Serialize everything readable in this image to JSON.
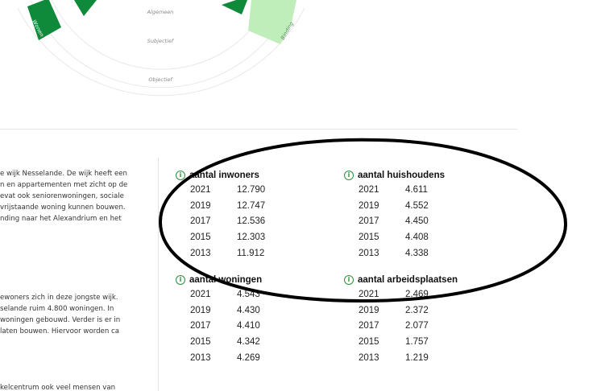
{
  "chart": {
    "ring_labels": [
      "Algemeen",
      "Subjectief",
      "Objectief"
    ],
    "segment_labels": [
      "Wonen",
      "Binding"
    ],
    "colors": {
      "dark_green": "#0e8a3a",
      "light_green": "#bfeebb",
      "ring": "#e8e8e8"
    }
  },
  "text": {
    "paragraph_1": [
      "e wijk Nesselande. De wijk heeft een",
      "n en appartementen met zicht op de",
      "evat ook seniorenwoningen, sociale",
      " vrijstaande woning kunnen bouwen.",
      "nding naar het Alexandrium en het"
    ],
    "paragraph_2": [
      "ewoners zich in deze jongste wijk.",
      "selande ruim 4.800 woningen. In",
      "woningen gebouwd. Verder is er in",
      "laten bouwen. Hiervoor worden ca"
    ],
    "paragraph_3": [
      "kelcentrum ook veel mensen van"
    ]
  },
  "stats": {
    "info_icon": "info-icon",
    "inwoners": {
      "title": "aantal inwoners",
      "rows": [
        {
          "year": "2021",
          "value": "12.790"
        },
        {
          "year": "2019",
          "value": "12.747"
        },
        {
          "year": "2017",
          "value": "12.536"
        },
        {
          "year": "2015",
          "value": "12.303"
        },
        {
          "year": "2013",
          "value": "11.912"
        }
      ]
    },
    "huishoudens": {
      "title": "aantal huishoudens",
      "rows": [
        {
          "year": "2021",
          "value": "4.611"
        },
        {
          "year": "2019",
          "value": "4.552"
        },
        {
          "year": "2017",
          "value": "4.450"
        },
        {
          "year": "2015",
          "value": "4.408"
        },
        {
          "year": "2013",
          "value": "4.338"
        }
      ]
    },
    "woningen": {
      "title": "aantal woningen",
      "rows": [
        {
          "year": "2021",
          "value": "4.543"
        },
        {
          "year": "2019",
          "value": "4.430"
        },
        {
          "year": "2017",
          "value": "4.410"
        },
        {
          "year": "2015",
          "value": "4.342"
        },
        {
          "year": "2013",
          "value": "4.269"
        }
      ]
    },
    "arbeidsplaatsen": {
      "title": "aantal arbeidsplaatsen",
      "rows": [
        {
          "year": "2021",
          "value": "2.469"
        },
        {
          "year": "2019",
          "value": "2.372"
        },
        {
          "year": "2017",
          "value": "2.077"
        },
        {
          "year": "2015",
          "value": "1.757"
        },
        {
          "year": "2013",
          "value": "1.219"
        }
      ]
    }
  }
}
